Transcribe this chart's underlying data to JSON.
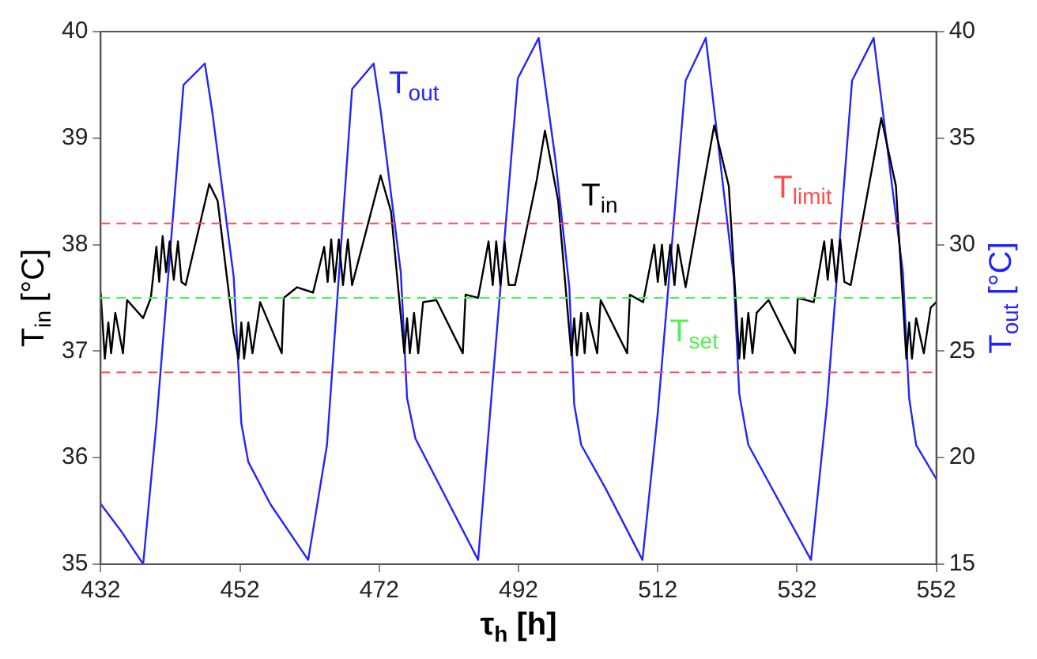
{
  "chart_data": {
    "type": "line",
    "xlabel": "τ$_{h}$ [h]",
    "ylabel": "T$_{in}$ [°C]",
    "y2label": "T$_{out}$ [°C]",
    "xlim": [
      432,
      552
    ],
    "xticks": [
      432,
      452,
      472,
      492,
      512,
      532,
      552
    ],
    "ylim": [
      35,
      40
    ],
    "yticks": [
      35,
      36,
      37,
      38,
      39,
      40
    ],
    "y2lim": [
      15,
      40
    ],
    "y2ticks": [
      15,
      20,
      25,
      30,
      35,
      40
    ],
    "grid": false,
    "legend": false,
    "marker": "none",
    "line_style": "solid",
    "series": [
      {
        "name": "T$_{in}$",
        "color": "#000000",
        "x": [
          432,
          432.6,
          433.1,
          433.5,
          434.1,
          435.2,
          435.8,
          438.1,
          439.2,
          440,
          440.4,
          440.9,
          441.4,
          441.9,
          442.5,
          443.1,
          443.6,
          444.2,
          447.6,
          448.8,
          451.1,
          451.8,
          452.2,
          452.6,
          453.2,
          453.8,
          454.9,
          458,
          458.3,
          460.2,
          462.5,
          464.1,
          464.6,
          465.1,
          465.6,
          466.2,
          466.8,
          467.5,
          468.1,
          472.2,
          473.7,
          475.6,
          476,
          476.4,
          477,
          477.6,
          478.3,
          480.2,
          484,
          484.4,
          486.2,
          487.7,
          488.3,
          488.8,
          489.4,
          490,
          490.6,
          491.5,
          494.6,
          495.8,
          497.7,
          499.6,
          500,
          500.4,
          501,
          501.5,
          501.9,
          503.3,
          503.8,
          507.6,
          508,
          509.9,
          511.5,
          512,
          512.6,
          513.1,
          513.8,
          514.4,
          514.9,
          516,
          520.1,
          522.2,
          523.7,
          524.1,
          524.4,
          525,
          525.6,
          526.2,
          527.9,
          531.7,
          532.1,
          534.4,
          535.9,
          536.4,
          537,
          537.6,
          538.2,
          538.8,
          539.7,
          544.1,
          546.2,
          547.7,
          548.1,
          548.5,
          549.1,
          550.2,
          551.2,
          552
        ],
        "values": [
          37.55,
          36.93,
          37.27,
          36.98,
          37.36,
          36.98,
          37.48,
          37.31,
          37.5,
          37.98,
          37.65,
          38.08,
          37.74,
          38.03,
          37.67,
          38.03,
          37.65,
          37.62,
          38.57,
          38.41,
          37.17,
          36.93,
          37.27,
          36.93,
          37.27,
          36.98,
          37.46,
          36.98,
          37.5,
          37.6,
          37.55,
          37.98,
          37.65,
          38.05,
          37.65,
          38.05,
          37.62,
          38.05,
          37.62,
          38.65,
          38.31,
          36.98,
          37.31,
          36.98,
          37.36,
          36.98,
          37.46,
          37.48,
          36.98,
          37.53,
          37.5,
          38.03,
          37.62,
          38.03,
          37.62,
          38.03,
          37.62,
          37.62,
          38.6,
          39.07,
          38.41,
          36.96,
          37.31,
          36.96,
          37.36,
          36.98,
          37.36,
          36.98,
          37.48,
          36.98,
          37.53,
          37.46,
          38,
          37.65,
          38,
          37.62,
          38,
          37.62,
          38,
          37.6,
          39.12,
          38.55,
          36.93,
          37.31,
          36.93,
          37.36,
          36.98,
          37.36,
          37.48,
          36.98,
          37.5,
          37.46,
          38.03,
          37.67,
          38.05,
          37.65,
          38.05,
          37.65,
          37.62,
          39.19,
          38.55,
          36.93,
          37.27,
          36.93,
          37.31,
          36.98,
          37.41,
          37.46
        ]
      },
      {
        "name": "T$_{out}$",
        "color": "#2323ff",
        "axis": "y2",
        "x": [
          432,
          435.05,
          438.1,
          440,
          443.9,
          446.96,
          448,
          451.1,
          452.2,
          453.2,
          456.4,
          461.8,
          464.5,
          468.1,
          471.2,
          472.2,
          475.1,
          476,
          477.2,
          486.2,
          488.1,
          491.9,
          494.9,
          497.3,
          499.3,
          500,
          501,
          504.6,
          509.8,
          512,
          516,
          518.9,
          522.9,
          523.7,
          525,
          534,
          536.3,
          539.9,
          543,
          547.2,
          548.1,
          549.1,
          552
        ],
        "values": [
          17.83,
          16.5,
          15,
          21.6,
          37.5,
          38.5,
          36.3,
          28.5,
          21.6,
          19.8,
          17.8,
          15.2,
          20.6,
          37.3,
          38.5,
          36.3,
          28.7,
          22.8,
          20.9,
          15.2,
          22.8,
          37.8,
          39.7,
          34,
          28,
          22.5,
          20.6,
          18.5,
          15.2,
          22.1,
          37.7,
          39.7,
          28.5,
          23,
          20.6,
          15.2,
          22.5,
          37.7,
          39.7,
          28.7,
          22.8,
          20.6,
          19
        ]
      }
    ],
    "ref_lines": [
      {
        "axis": "y",
        "value": 38.2,
        "label": "T$_{limit}$",
        "color": "#ff4d4d",
        "line_style": "dashed"
      },
      {
        "axis": "y",
        "value": 36.8,
        "color": "#ff4d4d",
        "line_style": "dashed"
      },
      {
        "axis": "y",
        "value": 37.5,
        "label": "T$_{set}$",
        "color": "#55ee55",
        "line_style": "dashed"
      }
    ]
  }
}
